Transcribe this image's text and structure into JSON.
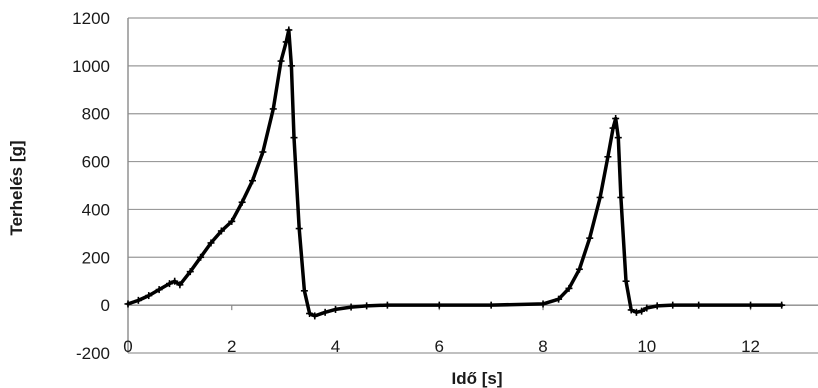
{
  "chart_data": {
    "type": "line",
    "title": "",
    "xlabel": "Idő [s]",
    "ylabel": "Terhelés [g]",
    "xlim": [
      0,
      13.3
    ],
    "ylim": [
      -200,
      1200
    ],
    "x_ticks": [
      "0",
      "2",
      "4",
      "6",
      "8",
      "10",
      "12"
    ],
    "y_ticks": [
      "-200",
      "0",
      "200",
      "400",
      "600",
      "800",
      "1000",
      "1200"
    ],
    "grid": "horizontal",
    "legend": "none",
    "series_color": "#000000",
    "marker": "plus",
    "series": [
      {
        "x": [
          0,
          0.2,
          0.4,
          0.6,
          0.8,
          0.9,
          1.0,
          1.2,
          1.4,
          1.6,
          1.8,
          2.0,
          2.2,
          2.4,
          2.6,
          2.8,
          2.95,
          3.05,
          3.1,
          3.15,
          3.2,
          3.3,
          3.4,
          3.5,
          3.6,
          3.8,
          4.0,
          4.3,
          4.6,
          5.0,
          6.0,
          7.0,
          8.0,
          8.3,
          8.5,
          8.7,
          8.9,
          9.1,
          9.25,
          9.35,
          9.4,
          9.45,
          9.5,
          9.6,
          9.7,
          9.8,
          9.9,
          10.0,
          10.2,
          10.5,
          11.0,
          12.0,
          12.6
        ],
        "y": [
          5,
          20,
          40,
          65,
          90,
          100,
          85,
          140,
          200,
          260,
          310,
          350,
          430,
          520,
          640,
          820,
          1020,
          1100,
          1150,
          1000,
          700,
          320,
          60,
          -35,
          -45,
          -30,
          -18,
          -8,
          -3,
          0,
          0,
          0,
          5,
          25,
          70,
          150,
          280,
          450,
          620,
          740,
          780,
          700,
          450,
          100,
          -20,
          -30,
          -25,
          -12,
          -3,
          0,
          0,
          0,
          0
        ]
      }
    ]
  }
}
